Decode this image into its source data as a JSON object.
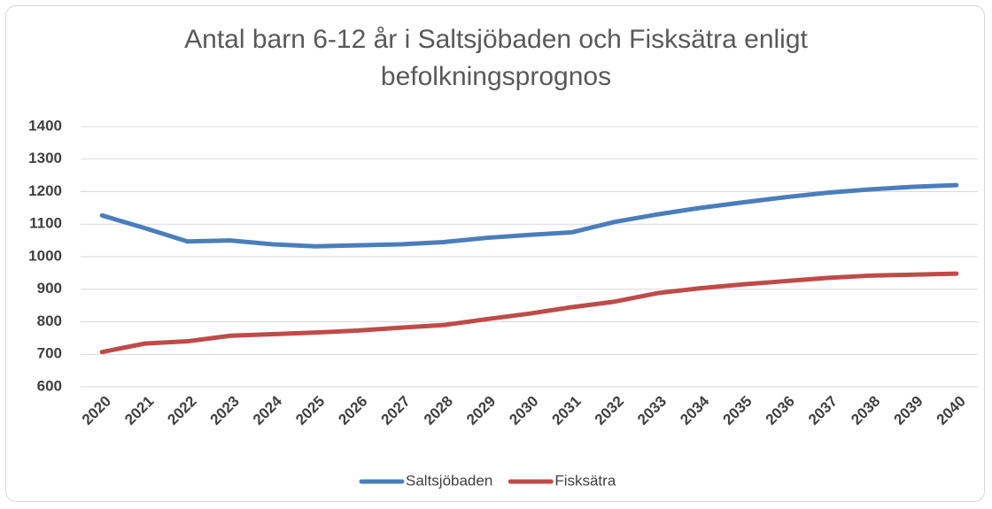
{
  "chart_data": {
    "type": "line",
    "title": "Antal barn 6-12 år i Saltsjöbaden och Fisksätra enligt befolkningsprognos",
    "categories": [
      "2020",
      "2021",
      "2022",
      "2023",
      "2024",
      "2025",
      "2026",
      "2027",
      "2028",
      "2029",
      "2030",
      "2031",
      "2032",
      "2033",
      "2034",
      "2035",
      "2036",
      "2037",
      "2038",
      "2039",
      "2040"
    ],
    "series": [
      {
        "name": "Saltsjöbaden",
        "color": "#4a7ebb",
        "values": [
          1127,
          1088,
          1047,
          1050,
          1038,
          1032,
          1035,
          1038,
          1045,
          1058,
          1067,
          1075,
          1107,
          1130,
          1150,
          1167,
          1183,
          1197,
          1207,
          1215,
          1220
        ]
      },
      {
        "name": "Fisksätra",
        "color": "#be4b48",
        "values": [
          707,
          733,
          740,
          757,
          762,
          767,
          773,
          782,
          790,
          808,
          825,
          845,
          862,
          888,
          903,
          915,
          925,
          935,
          942,
          945,
          948
        ]
      }
    ],
    "ylim": [
      600,
      1400
    ],
    "yticks": [
      600,
      700,
      800,
      900,
      1000,
      1100,
      1200,
      1300,
      1400
    ],
    "grid": true,
    "legend": "bottom"
  }
}
